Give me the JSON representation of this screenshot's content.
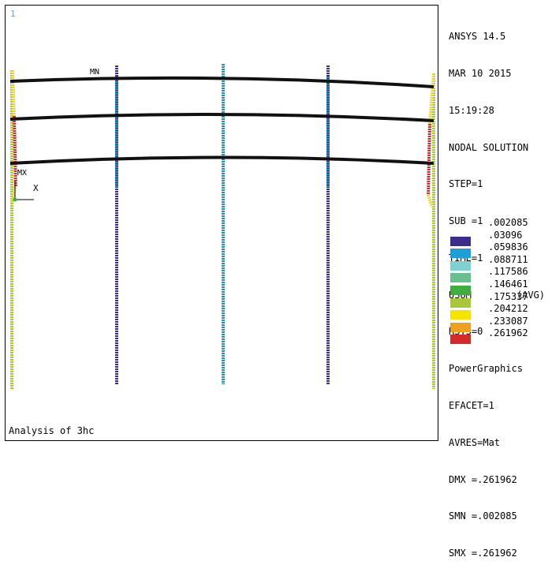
{
  "viewport": {
    "window_number": "1",
    "footer_title": "Analysis of 3hc",
    "label_mn": "MN",
    "label_mx": "MX",
    "label_x": "X"
  },
  "info": {
    "product": "ANSYS 14.5",
    "date": "MAR 10 2015",
    "time": "15:19:28",
    "solution": "NODAL SOLUTION",
    "step": "STEP=1",
    "sub": "SUB =1",
    "time_val": "TIME=1",
    "usum": "USUM",
    "avg": "(AVG)",
    "rsys": "RSYS=0",
    "graphics": "PowerGraphics",
    "efacet": "EFACET=1",
    "avres": "AVRES=Mat",
    "dmx": "DMX =.261962",
    "smn": "SMN =.002085",
    "smx": "SMX =.261962"
  },
  "legend": {
    "values": [
      ".002085",
      ".03096",
      ".059836",
      ".088711",
      ".117586",
      ".146461",
      ".175337",
      ".204212",
      ".233087",
      ".261962"
    ],
    "colors": [
      "#3c2d8c",
      "#1f9fd8",
      "#7fd0d0",
      "#6bbf8f",
      "#3fae3f",
      "#a8c83a",
      "#f5e400",
      "#f0a020",
      "#d42a2a"
    ]
  },
  "colors": {
    "beam": "#111111",
    "column_dark": "#3c2d8c",
    "column_teal": "#2b8fa8",
    "wall": "#a8c83a"
  }
}
